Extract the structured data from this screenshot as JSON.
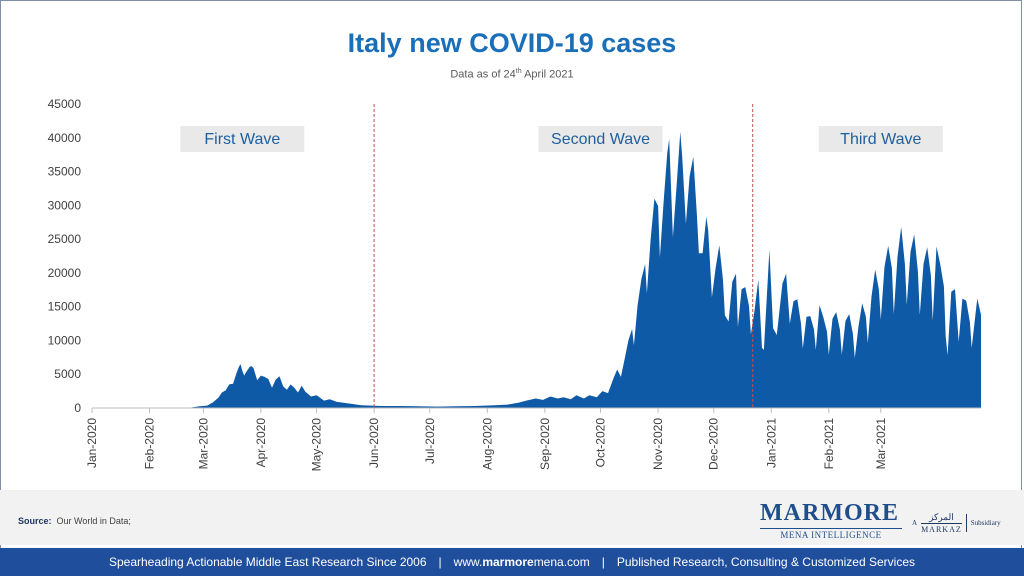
{
  "header": {
    "title": "Italy new COVID-19 cases",
    "subtitle_prefix": "Data as of 24",
    "subtitle_sup": "th",
    "subtitle_suffix": " April 2021"
  },
  "chart_data": {
    "type": "area",
    "title": "Italy new COVID-19 cases",
    "xlabel": "",
    "ylabel": "",
    "ylim": [
      0,
      45000
    ],
    "y_ticks": [
      "0",
      "5000",
      "10000",
      "15000",
      "20000",
      "25000",
      "30000",
      "35000",
      "40000",
      "45000"
    ],
    "x_ticks": [
      "Jan-2020",
      "Feb-2020",
      "Mar-2020",
      "Apr-2020",
      "May-2020",
      "Jun-2020",
      "Jul-2020",
      "Aug-2020",
      "Sep-2020",
      "Oct-2020",
      "Nov-2020",
      "Dec-2020",
      "Jan-2021",
      "Feb-2021",
      "Mar-2021"
    ],
    "x_start": "2020-01-01",
    "x_end": "2021-04-24",
    "color": "#0e5aa7",
    "wave_dividers": [
      "2020-06-01",
      "2020-12-22"
    ],
    "wave_labels": [
      {
        "label": "First Wave",
        "date": "2020-03-22"
      },
      {
        "label": "Second Wave",
        "date": "2020-10-01"
      },
      {
        "label": "Third Wave",
        "date": "2021-03-01"
      }
    ],
    "series": [
      {
        "points": [
          [
            "2020-01-01",
            0
          ],
          [
            "2020-02-15",
            0
          ],
          [
            "2020-02-22",
            20
          ],
          [
            "2020-02-28",
            250
          ],
          [
            "2020-03-03",
            350
          ],
          [
            "2020-03-06",
            800
          ],
          [
            "2020-03-09",
            1500
          ],
          [
            "2020-03-11",
            2300
          ],
          [
            "2020-03-13",
            2600
          ],
          [
            "2020-03-15",
            3500
          ],
          [
            "2020-03-17",
            3600
          ],
          [
            "2020-03-19",
            5300
          ],
          [
            "2020-03-20",
            6000
          ],
          [
            "2020-03-21",
            6500
          ],
          [
            "2020-03-22",
            5500
          ],
          [
            "2020-03-23",
            4800
          ],
          [
            "2020-03-24",
            5300
          ],
          [
            "2020-03-26",
            6100
          ],
          [
            "2020-03-27",
            6200
          ],
          [
            "2020-03-28",
            5900
          ],
          [
            "2020-03-30",
            4100
          ],
          [
            "2020-04-01",
            4800
          ],
          [
            "2020-04-03",
            4600
          ],
          [
            "2020-04-05",
            4300
          ],
          [
            "2020-04-07",
            3000
          ],
          [
            "2020-04-09",
            4200
          ],
          [
            "2020-04-11",
            4700
          ],
          [
            "2020-04-13",
            3200
          ],
          [
            "2020-04-15",
            2700
          ],
          [
            "2020-04-17",
            3500
          ],
          [
            "2020-04-19",
            3000
          ],
          [
            "2020-04-21",
            2300
          ],
          [
            "2020-04-23",
            3300
          ],
          [
            "2020-04-25",
            2400
          ],
          [
            "2020-04-28",
            1700
          ],
          [
            "2020-05-01",
            1900
          ],
          [
            "2020-05-05",
            1100
          ],
          [
            "2020-05-08",
            1300
          ],
          [
            "2020-05-12",
            900
          ],
          [
            "2020-05-15",
            800
          ],
          [
            "2020-05-20",
            600
          ],
          [
            "2020-05-25",
            400
          ],
          [
            "2020-05-31",
            350
          ],
          [
            "2020-06-05",
            300
          ],
          [
            "2020-06-15",
            300
          ],
          [
            "2020-06-25",
            250
          ],
          [
            "2020-07-05",
            200
          ],
          [
            "2020-07-15",
            250
          ],
          [
            "2020-07-25",
            300
          ],
          [
            "2020-08-05",
            400
          ],
          [
            "2020-08-12",
            500
          ],
          [
            "2020-08-18",
            800
          ],
          [
            "2020-08-22",
            1100
          ],
          [
            "2020-08-27",
            1400
          ],
          [
            "2020-08-31",
            1200
          ],
          [
            "2020-09-04",
            1700
          ],
          [
            "2020-09-08",
            1400
          ],
          [
            "2020-09-11",
            1600
          ],
          [
            "2020-09-15",
            1300
          ],
          [
            "2020-09-18",
            1900
          ],
          [
            "2020-09-22",
            1400
          ],
          [
            "2020-09-25",
            1900
          ],
          [
            "2020-09-29",
            1600
          ],
          [
            "2020-10-02",
            2500
          ],
          [
            "2020-10-05",
            2200
          ],
          [
            "2020-10-08",
            4400
          ],
          [
            "2020-10-10",
            5700
          ],
          [
            "2020-10-12",
            4600
          ],
          [
            "2020-10-14",
            7300
          ],
          [
            "2020-10-16",
            10000
          ],
          [
            "2020-10-18",
            11700
          ],
          [
            "2020-10-19",
            9300
          ],
          [
            "2020-10-21",
            15200
          ],
          [
            "2020-10-23",
            19100
          ],
          [
            "2020-10-25",
            21300
          ],
          [
            "2020-10-26",
            17000
          ],
          [
            "2020-10-28",
            24900
          ],
          [
            "2020-10-30",
            31000
          ],
          [
            "2020-11-01",
            29900
          ],
          [
            "2020-11-02",
            22300
          ],
          [
            "2020-11-04",
            30500
          ],
          [
            "2020-11-06",
            37800
          ],
          [
            "2020-11-07",
            39800
          ],
          [
            "2020-11-09",
            25300
          ],
          [
            "2020-11-11",
            32900
          ],
          [
            "2020-11-13",
            40900
          ],
          [
            "2020-11-14",
            37200
          ],
          [
            "2020-11-16",
            27300
          ],
          [
            "2020-11-18",
            34300
          ],
          [
            "2020-11-20",
            37200
          ],
          [
            "2020-11-22",
            28300
          ],
          [
            "2020-11-23",
            22900
          ],
          [
            "2020-11-25",
            22900
          ],
          [
            "2020-11-27",
            28300
          ],
          [
            "2020-11-28",
            26300
          ],
          [
            "2020-11-30",
            16400
          ],
          [
            "2020-12-02",
            20700
          ],
          [
            "2020-12-04",
            24100
          ],
          [
            "2020-12-06",
            18900
          ],
          [
            "2020-12-07",
            13700
          ],
          [
            "2020-12-09",
            12800
          ],
          [
            "2020-12-11",
            18700
          ],
          [
            "2020-12-13",
            19900
          ],
          [
            "2020-12-14",
            12000
          ],
          [
            "2020-12-16",
            17600
          ],
          [
            "2020-12-18",
            17900
          ],
          [
            "2020-12-20",
            15100
          ],
          [
            "2020-12-21",
            10900
          ],
          [
            "2020-12-23",
            14500
          ],
          [
            "2020-12-25",
            19000
          ],
          [
            "2020-12-27",
            8900
          ],
          [
            "2020-12-28",
            8600
          ],
          [
            "2020-12-31",
            23400
          ],
          [
            "2021-01-02",
            11800
          ],
          [
            "2021-01-04",
            10800
          ],
          [
            "2021-01-07",
            18400
          ],
          [
            "2021-01-09",
            19900
          ],
          [
            "2021-01-11",
            12500
          ],
          [
            "2021-01-13",
            15800
          ],
          [
            "2021-01-15",
            16100
          ],
          [
            "2021-01-17",
            12500
          ],
          [
            "2021-01-18",
            8800
          ],
          [
            "2021-01-20",
            13500
          ],
          [
            "2021-01-22",
            13600
          ],
          [
            "2021-01-24",
            11600
          ],
          [
            "2021-01-25",
            8600
          ],
          [
            "2021-01-27",
            15200
          ],
          [
            "2021-01-29",
            13500
          ],
          [
            "2021-01-31",
            11300
          ],
          [
            "2021-02-01",
            7900
          ],
          [
            "2021-02-03",
            13200
          ],
          [
            "2021-02-05",
            14200
          ],
          [
            "2021-02-07",
            11600
          ],
          [
            "2021-02-08",
            7900
          ],
          [
            "2021-02-10",
            12900
          ],
          [
            "2021-02-12",
            13900
          ],
          [
            "2021-02-14",
            11000
          ],
          [
            "2021-02-15",
            7400
          ],
          [
            "2021-02-17",
            12100
          ],
          [
            "2021-02-19",
            15500
          ],
          [
            "2021-02-21",
            13500
          ],
          [
            "2021-02-22",
            9600
          ],
          [
            "2021-02-24",
            16500
          ],
          [
            "2021-02-26",
            20500
          ],
          [
            "2021-02-28",
            17500
          ],
          [
            "2021-03-01",
            13100
          ],
          [
            "2021-03-03",
            20900
          ],
          [
            "2021-03-05",
            24000
          ],
          [
            "2021-03-07",
            20700
          ],
          [
            "2021-03-08",
            13900
          ],
          [
            "2021-03-10",
            22400
          ],
          [
            "2021-03-12",
            26800
          ],
          [
            "2021-03-14",
            21300
          ],
          [
            "2021-03-15",
            15300
          ],
          [
            "2021-03-17",
            23100
          ],
          [
            "2021-03-19",
            25700
          ],
          [
            "2021-03-21",
            20200
          ],
          [
            "2021-03-22",
            13800
          ],
          [
            "2021-03-24",
            21300
          ],
          [
            "2021-03-26",
            23800
          ],
          [
            "2021-03-28",
            19600
          ],
          [
            "2021-03-29",
            12900
          ],
          [
            "2021-03-31",
            23900
          ],
          [
            "2021-04-02",
            21300
          ],
          [
            "2021-04-04",
            18000
          ],
          [
            "2021-04-05",
            10600
          ],
          [
            "2021-04-06",
            7800
          ],
          [
            "2021-04-08",
            17200
          ],
          [
            "2021-04-10",
            17600
          ],
          [
            "2021-04-12",
            9800
          ],
          [
            "2021-04-14",
            16200
          ],
          [
            "2021-04-16",
            15900
          ],
          [
            "2021-04-18",
            12700
          ],
          [
            "2021-04-19",
            8900
          ],
          [
            "2021-04-21",
            13800
          ],
          [
            "2021-04-22",
            16200
          ],
          [
            "2021-04-24",
            13800
          ]
        ]
      }
    ]
  },
  "footer": {
    "source_label": "Source:",
    "source_text": "Our World in Data;",
    "logo_main": "MARMORE",
    "logo_sub": "MENA INTELLIGENCE",
    "markaz_prefix": "A",
    "markaz_arabic": "المركز",
    "markaz_name": "MARKAZ",
    "markaz_suffix": "Subsidiary",
    "bar_left": "Spearheading Actionable Middle East Research Since 2006",
    "bar_sep": "|",
    "bar_url_pre": "www.",
    "bar_url_brand": "marmore",
    "bar_url_post": "mena.com",
    "bar_right": "Published Research, Consulting & Customized Services"
  }
}
